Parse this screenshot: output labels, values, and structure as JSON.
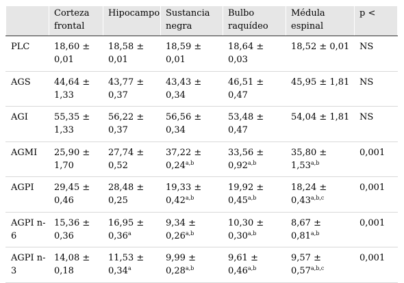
{
  "table": {
    "headers": [
      "",
      "Corteza frontal",
      "Hipocampo",
      "Sustancia negra",
      "Bulbo raquídeo",
      "Médula espinal",
      "p <"
    ],
    "rows": [
      {
        "label": "PLC",
        "cells": [
          [
            "18,60 ± 0,01",
            ""
          ],
          [
            "18,58 ± 0,01",
            ""
          ],
          [
            "18,59 ± 0,01",
            ""
          ],
          [
            "18,64 ± 0,03",
            ""
          ],
          [
            "18,52 ± 0,01",
            ""
          ]
        ],
        "p": "NS"
      },
      {
        "label": "AGS",
        "cells": [
          [
            "44,64 ± 1,33",
            ""
          ],
          [
            "43,77 ± 0,37",
            ""
          ],
          [
            "43,43 ± 0,34",
            ""
          ],
          [
            "46,51 ± 0,47",
            ""
          ],
          [
            "45,95 ± 1,81",
            ""
          ]
        ],
        "p": "NS"
      },
      {
        "label": "AGI",
        "cells": [
          [
            "55,35 ± 1,33",
            ""
          ],
          [
            "56,22 ± 0,37",
            ""
          ],
          [
            "56,56 ± 0,34",
            ""
          ],
          [
            "53,48 ± 0,47",
            ""
          ],
          [
            "54,04 ± 1,81",
            ""
          ]
        ],
        "p": "NS"
      },
      {
        "label": "AGMI",
        "cells": [
          [
            "25,90 ± 1,70",
            ""
          ],
          [
            "27,74 ± 0,52",
            ""
          ],
          [
            "37,22 ± 0,24",
            "a,b"
          ],
          [
            "33,56 ± 0,92",
            "a,b"
          ],
          [
            "35,80 ± 1,53",
            "a,b"
          ]
        ],
        "p": "0,001"
      },
      {
        "label": "AGPI",
        "cells": [
          [
            "29,45 ± 0,46",
            ""
          ],
          [
            "28,48 ± 0,25",
            ""
          ],
          [
            "19,33 ± 0,42",
            "a,b"
          ],
          [
            "19,92 ± 0,45",
            "a,b"
          ],
          [
            "18,24 ± 0,43",
            "a,b,c"
          ]
        ],
        "p": "0,001"
      },
      {
        "label": "AGPI n-6",
        "cells": [
          [
            "15,36 ± 0,36",
            ""
          ],
          [
            "16,95 ± 0,36",
            "a"
          ],
          [
            "9,34 ± 0,26",
            "a,b"
          ],
          [
            "10,30 ± 0,30",
            "a,b"
          ],
          [
            "8,67 ± 0,81",
            "a,b"
          ]
        ],
        "p": "0,001"
      },
      {
        "label": "AGPI n-3",
        "cells": [
          [
            "14,08 ± 0,18",
            ""
          ],
          [
            "11,53 ± 0,34",
            "a"
          ],
          [
            "9,99 ± 0,28",
            "a,b"
          ],
          [
            "9,61 ± 0,46",
            "a,b"
          ],
          [
            "9,57 ± 0,57",
            "a,b,c"
          ]
        ],
        "p": "0,001"
      }
    ]
  }
}
